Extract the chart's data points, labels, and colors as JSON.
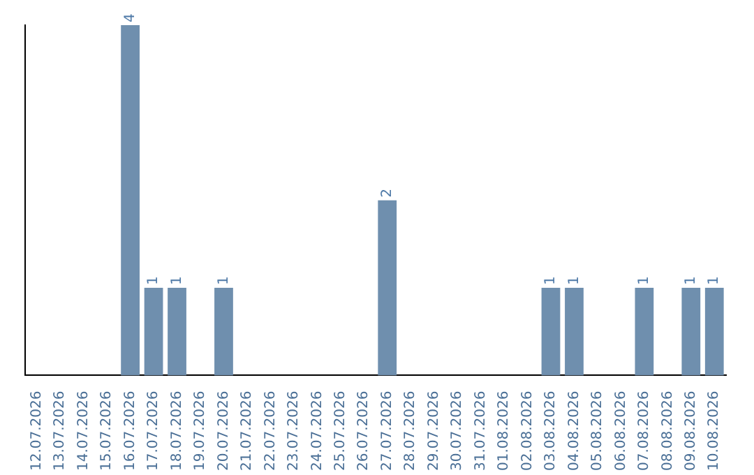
{
  "chart_data": {
    "type": "bar",
    "categories": [
      "12.07.2026",
      "13.07.2026",
      "14.07.2026",
      "15.07.2026",
      "16.07.2026",
      "17.07.2026",
      "18.07.2026",
      "19.07.2026",
      "20.07.2026",
      "21.07.2026",
      "22.07.2026",
      "23.07.2026",
      "24.07.2026",
      "25.07.2026",
      "26.07.2026",
      "27.07.2026",
      "28.07.2026",
      "29.07.2026",
      "30.07.2026",
      "31.07.2026",
      "01.08.2026",
      "02.08.2026",
      "03.08.2026",
      "04.08.2026",
      "05.08.2026",
      "06.08.2026",
      "07.08.2026",
      "08.08.2026",
      "09.08.2026",
      "10.08.2026"
    ],
    "values": [
      0,
      0,
      0,
      0,
      4,
      1,
      1,
      0,
      1,
      0,
      0,
      0,
      0,
      0,
      0,
      2,
      0,
      0,
      0,
      0,
      0,
      0,
      1,
      1,
      0,
      0,
      1,
      0,
      1,
      1
    ],
    "value_labels": [
      null,
      null,
      null,
      null,
      "4",
      "1",
      "1",
      null,
      "1",
      null,
      null,
      null,
      null,
      null,
      null,
      "2",
      null,
      null,
      null,
      null,
      null,
      null,
      "1",
      "1",
      null,
      null,
      "1",
      null,
      "1",
      "1"
    ],
    "color": "#6f8fae",
    "grid": false,
    "legend": false,
    "tick_labels": "x"
  }
}
